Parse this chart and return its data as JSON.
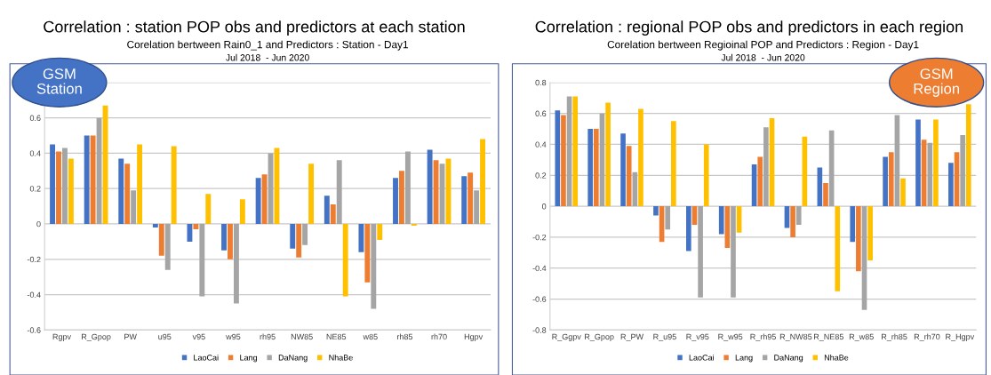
{
  "chart_data": [
    {
      "type": "bar",
      "title": "Corelation bertween Rain0_1 and Predictors : Station - Day1",
      "subtitle": "Jul 2018  - Jun 2020",
      "annotations": [
        "Correlation : station POP obs and predictors at each station",
        "GSM\nStation"
      ],
      "categories": [
        "Rgpv",
        "R_Gpop",
        "PW",
        "u95",
        "v95",
        "w95",
        "rh95",
        "NW85",
        "NE85",
        "w85",
        "rh85",
        "rh70",
        "Hgpv"
      ],
      "series": [
        {
          "name": "LaoCai",
          "color": "#4472c4",
          "values": [
            0.45,
            0.5,
            0.37,
            -0.02,
            -0.1,
            -0.15,
            0.26,
            -0.14,
            0.16,
            -0.16,
            0.26,
            0.42,
            0.27
          ]
        },
        {
          "name": "Lang",
          "color": "#ed7d31",
          "values": [
            0.41,
            0.5,
            0.34,
            -0.18,
            -0.03,
            -0.2,
            0.28,
            -0.19,
            0.11,
            -0.33,
            0.3,
            0.36,
            0.29
          ]
        },
        {
          "name": "DaNang",
          "color": "#a5a5a5",
          "values": [
            0.43,
            0.6,
            0.19,
            -0.26,
            -0.41,
            -0.45,
            0.4,
            -0.12,
            0.36,
            -0.48,
            0.41,
            0.34,
            0.19
          ]
        },
        {
          "name": "NhaBe",
          "color": "#ffc000",
          "values": [
            0.37,
            0.67,
            0.45,
            0.44,
            0.17,
            0.14,
            0.43,
            0.34,
            -0.41,
            -0.09,
            -0.01,
            0.37,
            0.48
          ]
        }
      ],
      "ylim": [
        -0.6,
        0.8
      ],
      "yticks": [
        -0.6,
        -0.4,
        -0.2,
        0,
        0.2,
        0.4,
        0.6,
        {
          "value": 0.8,
          "label": null
        }
      ],
      "grid": "y",
      "legend": "bottom"
    },
    {
      "type": "bar",
      "title": "Corelation bertween Regioinal POP and Predictors : Region - Day1",
      "subtitle": "Jul 2018  - Jun 2020",
      "annotations": [
        "Correlation : regional POP obs and predictors in each region",
        "GSM\nRegion"
      ],
      "categories": [
        "R_Ggpv",
        "R_Gpop",
        "R_PW",
        "R_u95",
        "R_v95",
        "R_w95",
        "R_rh95",
        "R_NW85",
        "R_NE85",
        "R_w85",
        "R_rh85",
        "R_rh70",
        "R_Hgpv"
      ],
      "series": [
        {
          "name": "LaoCai",
          "color": "#4472c4",
          "values": [
            0.62,
            0.5,
            0.47,
            -0.06,
            -0.29,
            -0.18,
            0.27,
            -0.14,
            0.25,
            -0.23,
            0.32,
            0.56,
            0.28
          ]
        },
        {
          "name": "Lang",
          "color": "#ed7d31",
          "values": [
            0.59,
            0.5,
            0.39,
            -0.23,
            -0.12,
            -0.27,
            0.32,
            -0.2,
            0.15,
            -0.42,
            0.35,
            0.43,
            0.35
          ]
        },
        {
          "name": "DaNang",
          "color": "#a5a5a5",
          "values": [
            0.71,
            0.6,
            0.22,
            -0.15,
            -0.59,
            -0.59,
            0.51,
            -0.12,
            0.49,
            -0.67,
            0.59,
            0.41,
            0.46
          ]
        },
        {
          "name": "NhaBe",
          "color": "#ffc000",
          "values": [
            0.71,
            0.67,
            0.63,
            0.55,
            0.4,
            -0.17,
            0.57,
            0.45,
            -0.55,
            -0.35,
            0.18,
            0.56,
            0.66
          ]
        }
      ],
      "ylim": [
        -0.8,
        0.8
      ],
      "yticks": [
        -0.8,
        -0.6,
        -0.4,
        -0.2,
        0,
        0.2,
        0.4,
        0.6,
        0.8
      ],
      "grid": "y",
      "legend": "bottom"
    }
  ]
}
